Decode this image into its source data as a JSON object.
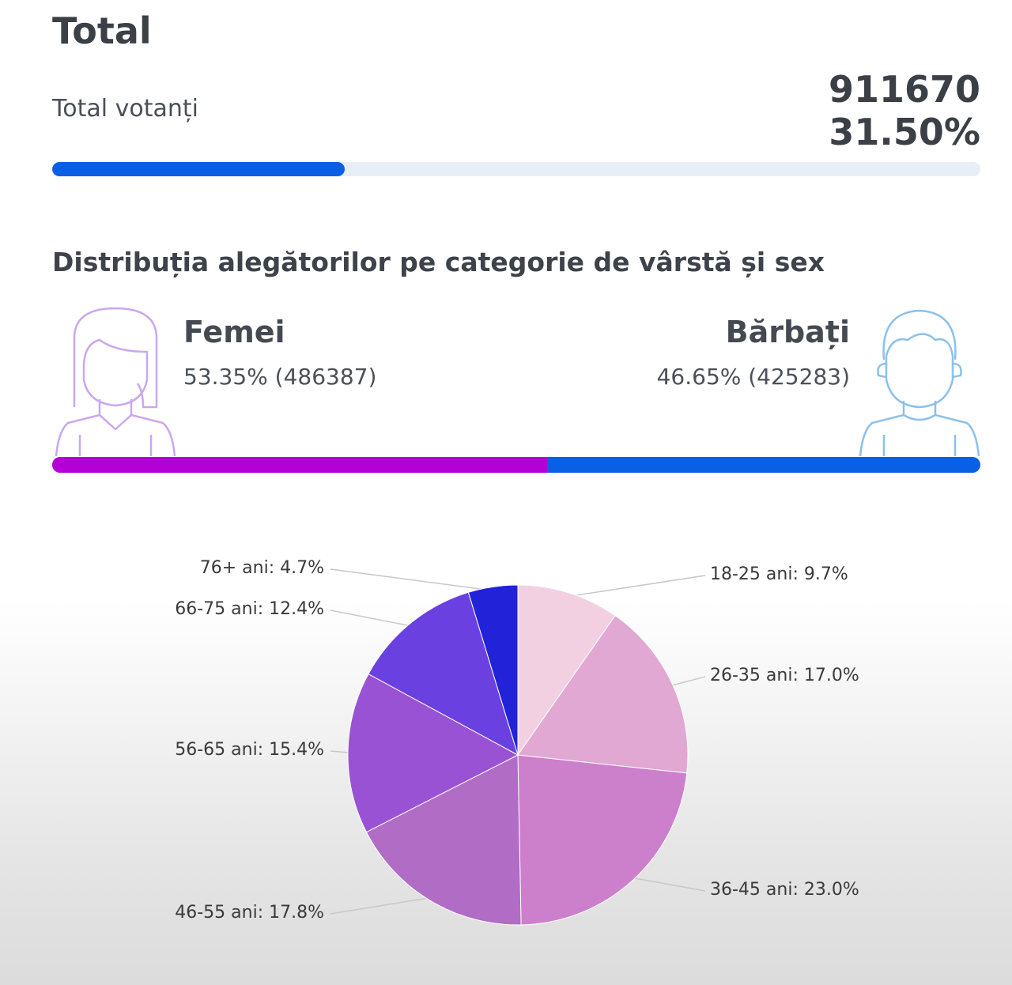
{
  "header": {
    "title": "Total",
    "voters_label": "Total votanți",
    "voters_count": "911670",
    "turnout_percent": "31.50%",
    "turnout_value": 31.5
  },
  "gender": {
    "title": "Distribuția alegătorilor pe categorie de vârstă și sex",
    "female": {
      "label": "Femei",
      "value": "53.35% (486387)",
      "percent": 53.35,
      "color": "#b300d6"
    },
    "male": {
      "label": "Bărbați",
      "value": "46.65% (425283)",
      "percent": 46.65,
      "color": "#0a5fe6"
    }
  },
  "chart_data": {
    "type": "pie",
    "title": "",
    "categories": [
      "18-25 ani",
      "26-35 ani",
      "36-45 ani",
      "46-55 ani",
      "56-65 ani",
      "66-75 ani",
      "76+ ani"
    ],
    "values": [
      9.7,
      17.0,
      23.0,
      17.8,
      15.4,
      12.4,
      4.7
    ],
    "labels": [
      "18-25 ani: 9.7%",
      "26-35 ani: 17.0%",
      "36-45 ani: 23.0%",
      "46-55 ani: 17.8%",
      "56-65 ani: 15.4%",
      "66-75 ani: 12.4%",
      "76+ ani: 4.7%"
    ],
    "colors": [
      "#f2d0e2",
      "#e0a8d2",
      "#cc80cc",
      "#b16cc6",
      "#9a52d4",
      "#6a40e0",
      "#2222d8"
    ],
    "start": "top",
    "direction": "clockwise"
  }
}
